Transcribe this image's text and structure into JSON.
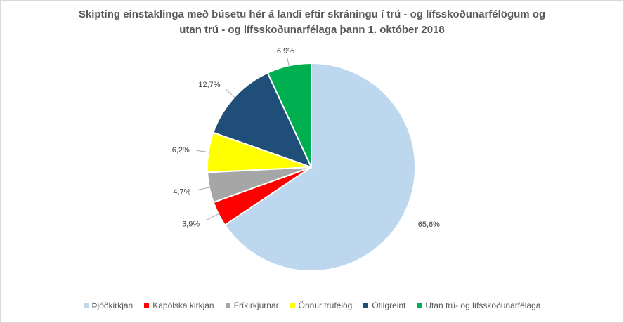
{
  "chart_data": {
    "type": "pie",
    "title_line1": "Skipting einstaklinga með búsetu hér á landi eftir skráningu í trú - og lífsskoðunarfélögum og",
    "title_line2": "utan trú - og lífsskoðunarfélaga þann 1. október 2018",
    "categories": [
      "Þjóðkirkjan",
      "Kaþólska kirkjan",
      "Fríkirkjurnar",
      "Önnur trúfélög",
      "Ótilgreint",
      "Utan trú- og lífsskoðunarfélaga"
    ],
    "values": [
      65.6,
      3.9,
      4.7,
      6.2,
      12.7,
      6.9
    ],
    "labels": [
      "65,6%",
      "3,9%",
      "4,7%",
      "6,2%",
      "12,7%",
      "6,9%"
    ],
    "colors": [
      "#bdd7ee",
      "#ff0000",
      "#a6a6a6",
      "#ffff00",
      "#1f4e79",
      "#00b050"
    ],
    "legend_position": "bottom",
    "start_angle": "12 o'clock",
    "direction": "clockwise"
  }
}
